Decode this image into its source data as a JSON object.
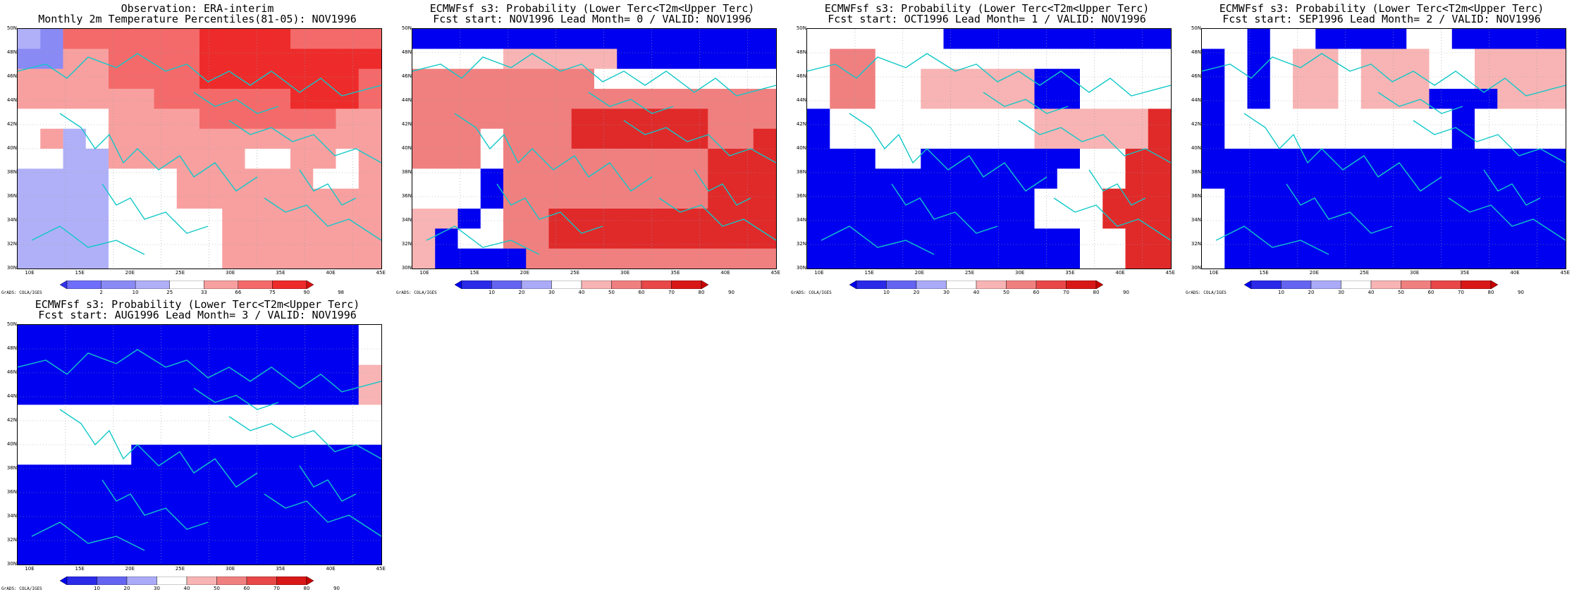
{
  "panels": [
    {
      "title1": "Observation: ERA-interim",
      "title2": "Monthly 2m Temperature Percentiles(81-05): NOV1996",
      "legend_type": "obs",
      "colorbar_labels": [
        "2",
        "10",
        "25",
        "33",
        "66",
        "75",
        "90",
        "98"
      ],
      "colors": [
        "#6e6efa",
        "#8a8af5",
        "#b0b0f8",
        "#ffffff",
        "#f8a0a0",
        "#f46a6a",
        "#ee2b2b"
      ],
      "grid": [
        "0155555566665555",
        "1144555566666666",
        "4444555566666665",
        "4444445555556665",
        "3333444455555544",
        "3403444444444444",
        "3300444444334434",
        "0000333444444334",
        "0000333444444444",
        "0000333334444444",
        "0000333334444444",
        "0000333334444444"
      ]
    },
    {
      "title1": "ECMWFsf s3: Probability (Lower Terc<T2m<Upper Terc)",
      "title2": "Fcst start: NOV1996  Lead Month= 0 / VALID: NOV1996",
      "legend_type": "prob",
      "colorbar_labels": [
        "10",
        "20",
        "30",
        "40",
        "50",
        "60",
        "70",
        "80",
        "90"
      ]
    },
    {
      "title1": "ECMWFsf s3: Probability (Lower Terc<T2m<Upper Terc)",
      "title2": "Fcst start: OCT1996  Lead Month= 1 / VALID: NOV1996",
      "legend_type": "prob",
      "colorbar_labels": [
        "10",
        "20",
        "30",
        "40",
        "50",
        "60",
        "70",
        "80",
        "90"
      ]
    },
    {
      "title1": "ECMWFsf s3: Probability (Lower Terc<T2m<Upper Terc)",
      "title2": "Fcst start: SEP1996  Lead Month= 2 / VALID: NOV1996",
      "legend_type": "prob",
      "colorbar_labels": [
        "10",
        "20",
        "30",
        "40",
        "50",
        "60",
        "70",
        "80",
        "90"
      ]
    },
    {
      "title1": "ECMWFsf s3: Probability (Lower Terc<T2m<Upper Terc)",
      "title2": "Fcst start: AUG1996  Lead Month= 3 / VALID: NOV1996",
      "legend_type": "prob",
      "colorbar_labels": [
        "10",
        "20",
        "30",
        "40",
        "50",
        "60",
        "70",
        "80",
        "90"
      ]
    }
  ],
  "prob_colors": [
    "#0000f0",
    "#2a2ae8",
    "#6464f0",
    "#ffffff",
    "#ffffff",
    "#f8b4b4",
    "#f08080",
    "#e84848",
    "#d81818",
    "#c80000"
  ],
  "lat_labels": [
    "50N",
    "48N",
    "46N",
    "44N",
    "42N",
    "40N",
    "38N",
    "36N",
    "34N",
    "32N",
    "30N"
  ],
  "lon_labels": [
    "10E",
    "15E",
    "20E",
    "25E",
    "30E",
    "35E",
    "40E",
    "45E"
  ],
  "grads_credit": "GrADS: COLA/IGES",
  "coastline_color": "#10c8c8"
}
